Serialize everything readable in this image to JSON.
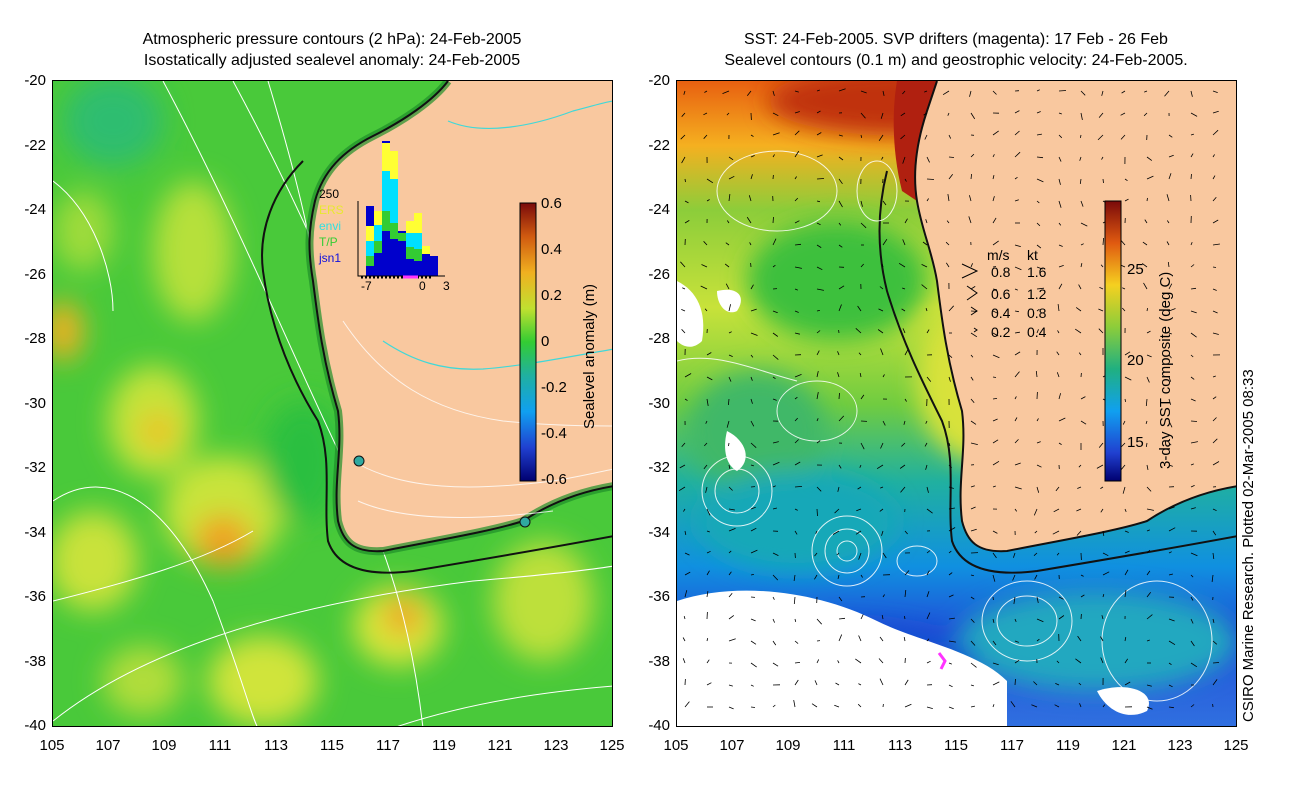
{
  "left_panel": {
    "title_line1": "Atmospheric pressure contours (2 hPa): 24-Feb-2005",
    "title_line2": "Isostatically adjusted sealevel anomaly: 24-Feb-2005",
    "y_ticks": [
      "-20",
      "-22",
      "-24",
      "-26",
      "-28",
      "-30",
      "-32",
      "-34",
      "-36",
      "-38",
      "-40"
    ],
    "x_ticks": [
      "105",
      "107",
      "109",
      "111",
      "113",
      "115",
      "117",
      "119",
      "121",
      "123",
      "125"
    ],
    "colorbar": {
      "label": "Sealevel anomaly (m)",
      "ticks": [
        "0.6",
        "0.4",
        "0.2",
        "0",
        "-0.2",
        "-0.4",
        "-0.6"
      ]
    },
    "inset": {
      "y_label": "250",
      "legend": [
        "ERS",
        "envi",
        "T/P",
        "jsn1"
      ],
      "x_ticks": [
        "-7",
        "0",
        "3"
      ]
    }
  },
  "right_panel": {
    "title_line1": "SST: 24-Feb-2005. SVP drifters (magenta): 17 Feb - 26 Feb",
    "title_line2": "Sealevel contours (0.1 m) and geostrophic velocity: 24-Feb-2005.",
    "y_ticks": [
      "-20",
      "-22",
      "-24",
      "-26",
      "-28",
      "-30",
      "-32",
      "-34",
      "-36",
      "-38",
      "-40"
    ],
    "x_ticks": [
      "105",
      "107",
      "109",
      "111",
      "113",
      "115",
      "117",
      "119",
      "121",
      "123",
      "125"
    ],
    "colorbar": {
      "label": "3-day SST composite (deg C)",
      "ticks": [
        "25",
        "20",
        "15"
      ]
    },
    "velocity_legend": {
      "header_ms": "m/s",
      "header_kt": "kt",
      "rows": [
        {
          "ms": "0.8",
          "kt": "1.6"
        },
        {
          "ms": "0.6",
          "kt": "1.2"
        },
        {
          "ms": "0.4",
          "kt": "0.8"
        },
        {
          "ms": "0.2",
          "kt": "0.4"
        }
      ]
    }
  },
  "credit": "CSIRO Marine Research. Plotted 02-Mar-2005 08:33",
  "colors": {
    "land": "#f9c89f",
    "ocean_green": "#3ccd3c",
    "coast": "#111111"
  }
}
